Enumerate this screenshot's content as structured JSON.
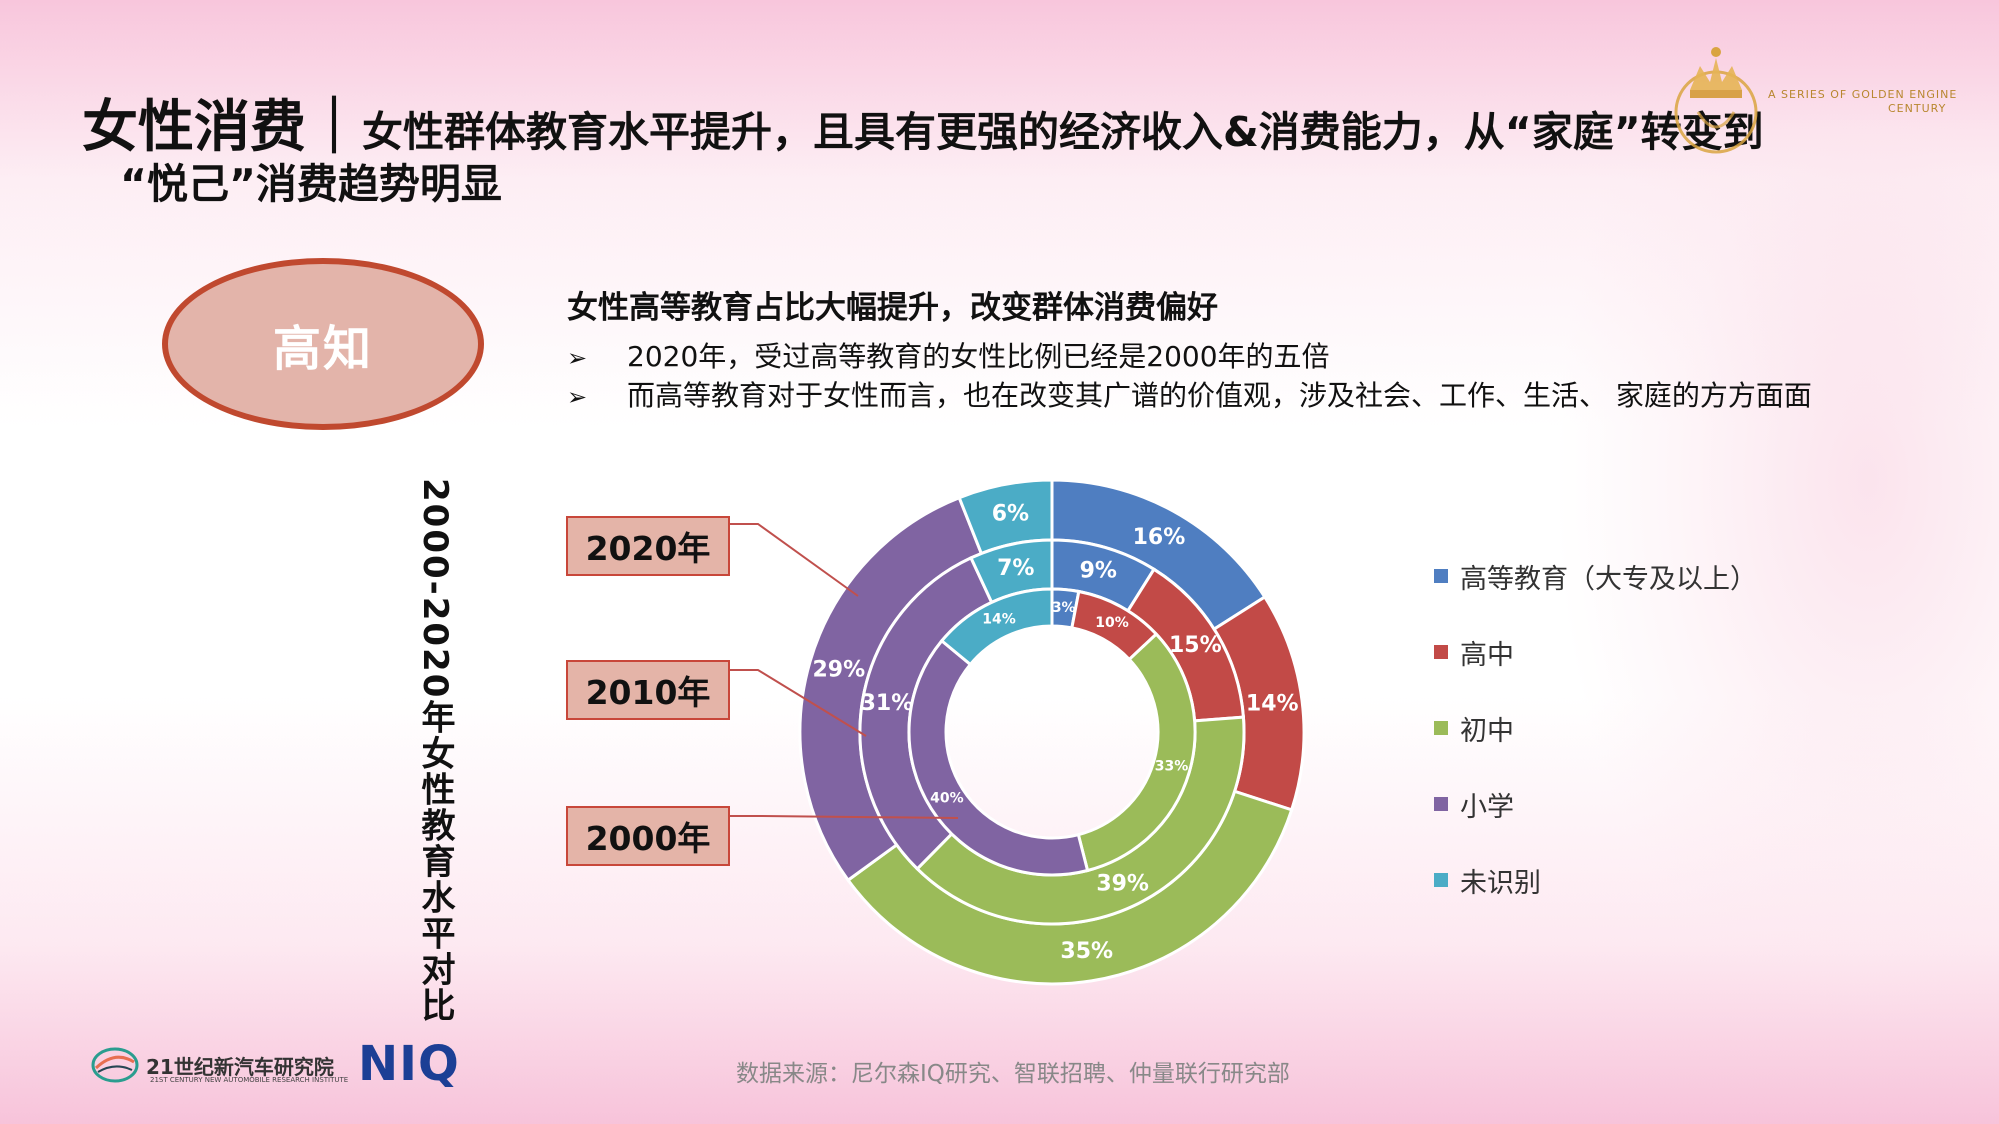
{
  "title": {
    "lead": "女性消费｜",
    "rest": "女性群体教育水平提升，且具有更强的经济收入&消费能力，从“家庭”转变到",
    "line2": "“悦己”消费趋势明显"
  },
  "brand": {
    "line1": "A SERIES OF GOLDEN ENGINE",
    "line2": "CENTURY"
  },
  "badge": "高知",
  "subheading": "女性高等教育占比大幅提升，改变群体消费偏好",
  "bullet_symbol": "➢",
  "bullets": [
    "2020年，受过高等教育的女性比例已经是2000年的五倍",
    "而高等教育对于女性而言，也在改变其广谱的价值观，涉及社会、工作、生活、 家庭的方方面面"
  ],
  "vertical_title": "2000-2020年女性教育水平对比",
  "year_labels": [
    "2020年",
    "2010年",
    "2000年"
  ],
  "colors": {
    "higher": "#4f7ec1",
    "high_school": "#c24a47",
    "middle": "#9bbb59",
    "primary": "#8064a2",
    "unknown": "#4bacc6",
    "leader": "#c0504d"
  },
  "chart_data": {
    "type": "donut",
    "categories": [
      "高等教育（大专及以上）",
      "高中",
      "初中",
      "小学",
      "未识别"
    ],
    "series": [
      {
        "name": "2020年",
        "values": [
          16,
          14,
          35,
          29,
          6
        ],
        "labels": [
          "16%",
          "14%",
          "35%",
          "29%",
          "6%"
        ]
      },
      {
        "name": "2010年",
        "values": [
          9,
          15,
          39,
          31,
          7
        ],
        "labels": [
          "9%",
          "15%",
          "39%",
          "31%",
          "7%"
        ]
      },
      {
        "name": "2000年",
        "values": [
          3,
          10,
          33,
          40,
          14
        ],
        "labels": [
          "3%",
          "10%",
          "33%",
          "40%",
          "14%"
        ]
      }
    ],
    "legend_position": "right"
  },
  "footer": {
    "org_cn": "21世纪新汽车研究院",
    "org_en": "21ST CENTURY NEW AUTOMOBILE RESEARCH INSTITUTE",
    "partner": "NIQ",
    "source": "数据来源：尼尔森IQ研究、智联招聘、仲量联行研究部"
  }
}
